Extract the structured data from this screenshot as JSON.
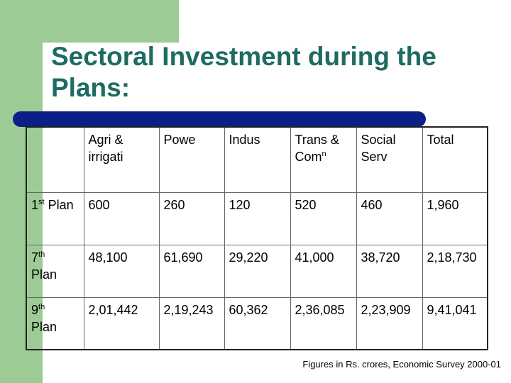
{
  "slide": {
    "title": "Sectoral Investment during the Plans:",
    "footnote": "Figures in Rs. crores, Economic Survey 2000-01"
  },
  "table": {
    "headers": [
      "",
      "Agri & irrigati",
      "Powe",
      "Indus",
      "Trans & Com",
      "Social Serv",
      "Total"
    ],
    "header_sup": {
      "trans": "n"
    },
    "rows": [
      {
        "ord": "1",
        "ord_sup": "st",
        "plan": " Plan",
        "values": [
          "600",
          "260",
          "120",
          "520",
          "460",
          "1,960"
        ]
      },
      {
        "ord": "7",
        "ord_sup": "th",
        "plan": "Plan",
        "values": [
          "48,100",
          "61,690",
          "29,220",
          "41,000",
          "38,720",
          "2,18,730"
        ]
      },
      {
        "ord": "9",
        "ord_sup": "th",
        "plan": "Plan",
        "values": [
          "2,01,442",
          "2,19,243",
          "60,362",
          "2,36,085",
          "2,23,909",
          "9,41,041"
        ]
      }
    ]
  },
  "colors": {
    "accent_green": "#9dcb95",
    "title_teal": "#1e6b62",
    "rule_blue": "#0b1f86"
  }
}
